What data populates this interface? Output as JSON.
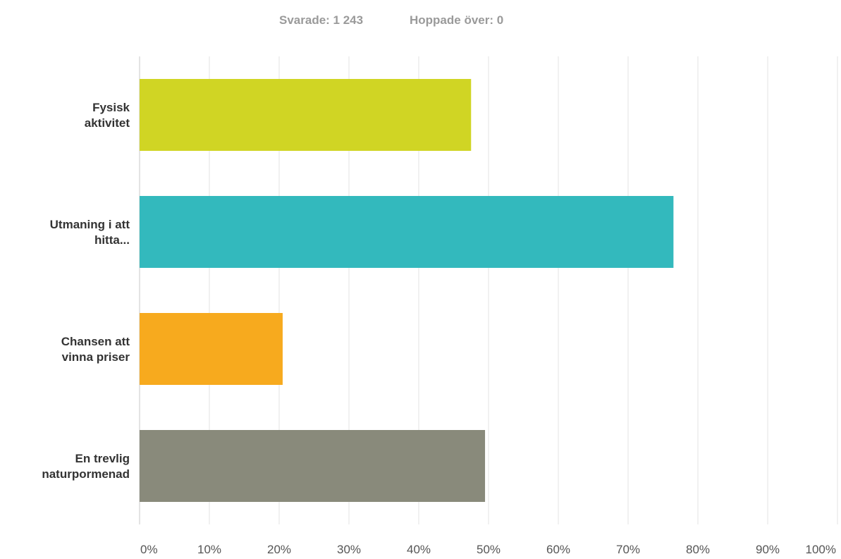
{
  "header": {
    "answered_label": "Svarade: 1 243",
    "skipped_label": "Hoppade över: 0"
  },
  "chart_data": {
    "type": "bar",
    "orientation": "horizontal",
    "categories": [
      [
        "Fysisk",
        "aktivitet"
      ],
      [
        "Utmaning i att",
        "hitta..."
      ],
      [
        "Chansen att",
        "vinna priser"
      ],
      [
        "En trevlig",
        "naturpormenad"
      ]
    ],
    "values": [
      47.5,
      76.5,
      20.5,
      49.5
    ],
    "colors": [
      "#d0d524",
      "#33b9bd",
      "#f7aa1e",
      "#898a7b"
    ],
    "xlim": [
      0,
      100
    ],
    "xticks": [
      "0%",
      "10%",
      "20%",
      "30%",
      "40%",
      "50%",
      "60%",
      "70%",
      "80%",
      "90%",
      "100%"
    ],
    "grid": true,
    "legend": "none"
  }
}
